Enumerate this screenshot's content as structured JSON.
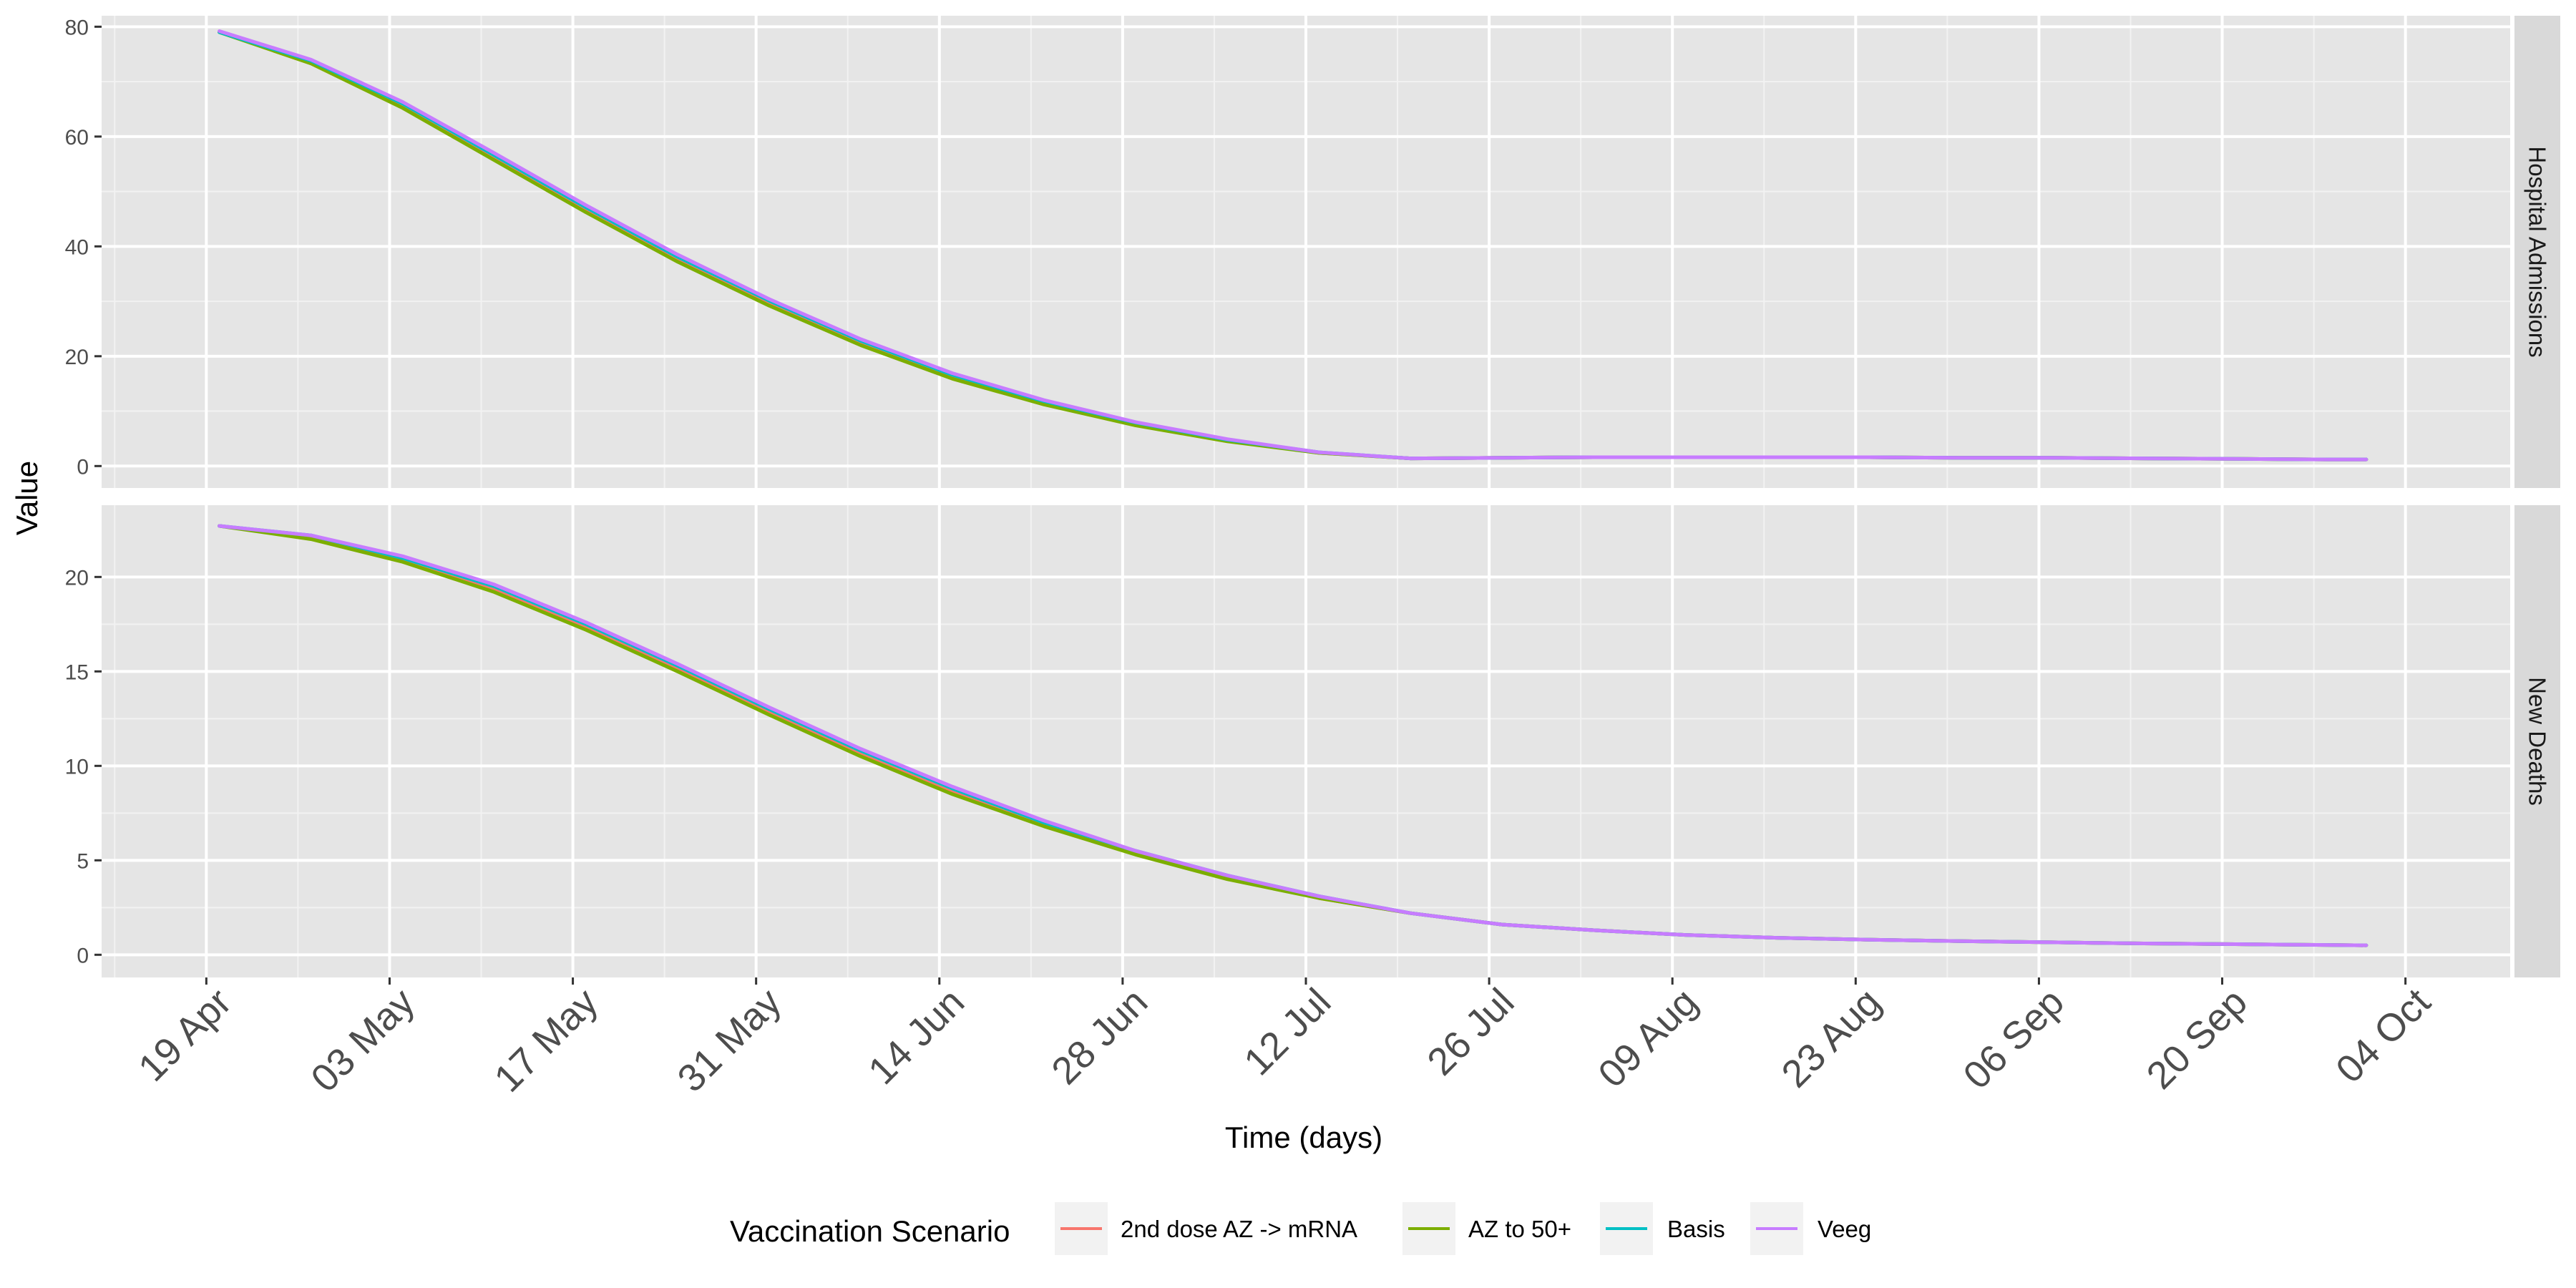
{
  "chart_data": {
    "type": "line",
    "xlabel": "Time (days)",
    "ylabel": "Value",
    "x_tick_labels": [
      "19 Apr",
      "03 May",
      "17 May",
      "31 May",
      "14 Jun",
      "28 Jun",
      "12 Jul",
      "26 Jul",
      "09 Aug",
      "23 Aug",
      "06 Sep",
      "20 Sep",
      "04 Oct"
    ],
    "x_tick_dates": [
      "2021-04-19",
      "2021-05-03",
      "2021-05-17",
      "2021-05-31",
      "2021-06-14",
      "2021-06-28",
      "2021-07-12",
      "2021-07-26",
      "2021-08-09",
      "2021-08-23",
      "2021-09-06",
      "2021-09-20",
      "2021-10-04"
    ],
    "xlim": [
      "2021-04-11",
      "2021-10-12"
    ],
    "grid": true,
    "legend": {
      "title": "Vaccination Scenario",
      "position": "bottom",
      "entries": [
        "2nd dose AZ -> mRNA",
        "AZ to 50+",
        "Basis",
        "Veeg"
      ]
    },
    "colors": {
      "2nd dose AZ -> mRNA": "#F8766D",
      "AZ to 50+": "#7CAE00",
      "Basis": "#00BFC4",
      "Veeg": "#C77CFF"
    },
    "panels": [
      {
        "strip": "Hospital Admissions",
        "ylim": [
          -4,
          82
        ],
        "y_ticks": [
          0,
          20,
          40,
          60,
          80
        ],
        "dates": [
          "2021-04-20",
          "2021-04-27",
          "2021-05-04",
          "2021-05-11",
          "2021-05-18",
          "2021-05-25",
          "2021-06-01",
          "2021-06-08",
          "2021-06-15",
          "2021-06-22",
          "2021-06-29",
          "2021-07-06",
          "2021-07-13",
          "2021-07-20",
          "2021-07-27",
          "2021-08-03",
          "2021-08-10",
          "2021-08-17",
          "2021-08-24",
          "2021-08-31",
          "2021-09-07",
          "2021-09-14",
          "2021-09-21",
          "2021-09-28",
          "2021-10-01"
        ],
        "series": [
          {
            "name": "2nd dose AZ -> mRNA",
            "values": [
              79,
              73.5,
              65.5,
              56,
              46.5,
              37.5,
              29.5,
              22.3,
              16.2,
              11.5,
              7.6,
              4.6,
              2.4,
              1.4,
              1.5,
              1.6,
              1.6,
              1.6,
              1.6,
              1.5,
              1.5,
              1.4,
              1.3,
              1.2,
              1.2
            ]
          },
          {
            "name": "AZ to 50+",
            "values": [
              79,
              73.3,
              65.2,
              55.7,
              46.2,
              37.2,
              29.2,
              22.0,
              15.9,
              11.2,
              7.4,
              4.5,
              2.4,
              1.4,
              1.5,
              1.6,
              1.6,
              1.6,
              1.6,
              1.5,
              1.5,
              1.4,
              1.3,
              1.2,
              1.2
            ]
          },
          {
            "name": "Basis",
            "values": [
              79,
              73.8,
              66.0,
              56.6,
              47.1,
              38.1,
              30.1,
              22.8,
              16.6,
              11.8,
              7.9,
              4.8,
              2.5,
              1.4,
              1.5,
              1.6,
              1.6,
              1.6,
              1.6,
              1.5,
              1.5,
              1.4,
              1.3,
              1.2,
              1.2
            ]
          },
          {
            "name": "Veeg",
            "values": [
              79.2,
              74.0,
              66.3,
              57.0,
              47.5,
              38.5,
              30.4,
              23.1,
              16.9,
              12.0,
              8.0,
              4.9,
              2.5,
              1.4,
              1.5,
              1.6,
              1.6,
              1.6,
              1.6,
              1.5,
              1.5,
              1.4,
              1.3,
              1.2,
              1.2
            ]
          }
        ]
      },
      {
        "strip": "New Deaths",
        "ylim": [
          -1.2,
          23.8
        ],
        "y_ticks": [
          0,
          5,
          10,
          15,
          20
        ],
        "dates": [
          "2021-04-20",
          "2021-04-27",
          "2021-05-04",
          "2021-05-11",
          "2021-05-18",
          "2021-05-25",
          "2021-06-01",
          "2021-06-08",
          "2021-06-15",
          "2021-06-22",
          "2021-06-29",
          "2021-07-06",
          "2021-07-13",
          "2021-07-20",
          "2021-07-27",
          "2021-08-03",
          "2021-08-10",
          "2021-08-17",
          "2021-08-24",
          "2021-08-31",
          "2021-09-07",
          "2021-09-14",
          "2021-09-21",
          "2021-09-28",
          "2021-10-01"
        ],
        "series": [
          {
            "name": "2nd dose AZ -> mRNA",
            "values": [
              22.7,
              22.1,
              20.9,
              19.3,
              17.3,
              15.1,
              12.8,
              10.6,
              8.6,
              6.9,
              5.4,
              4.1,
              3.0,
              2.2,
              1.6,
              1.3,
              1.05,
              0.9,
              0.8,
              0.72,
              0.66,
              0.6,
              0.56,
              0.52,
              0.5
            ]
          },
          {
            "name": "AZ to 50+",
            "values": [
              22.7,
              22.0,
              20.8,
              19.2,
              17.2,
              15.0,
              12.7,
              10.5,
              8.5,
              6.8,
              5.3,
              4.0,
              3.0,
              2.2,
              1.6,
              1.3,
              1.05,
              0.9,
              0.8,
              0.72,
              0.66,
              0.6,
              0.56,
              0.52,
              0.5
            ]
          },
          {
            "name": "Basis",
            "values": [
              22.7,
              22.2,
              21.0,
              19.5,
              17.5,
              15.3,
              13.0,
              10.8,
              8.8,
              7.0,
              5.5,
              4.2,
              3.1,
              2.2,
              1.6,
              1.3,
              1.05,
              0.9,
              0.8,
              0.72,
              0.66,
              0.6,
              0.56,
              0.52,
              0.5
            ]
          },
          {
            "name": "Veeg",
            "values": [
              22.7,
              22.2,
              21.1,
              19.6,
              17.6,
              15.4,
              13.1,
              10.9,
              8.9,
              7.1,
              5.5,
              4.2,
              3.1,
              2.2,
              1.6,
              1.3,
              1.05,
              0.9,
              0.8,
              0.72,
              0.66,
              0.6,
              0.56,
              0.52,
              0.5
            ]
          }
        ]
      }
    ]
  }
}
